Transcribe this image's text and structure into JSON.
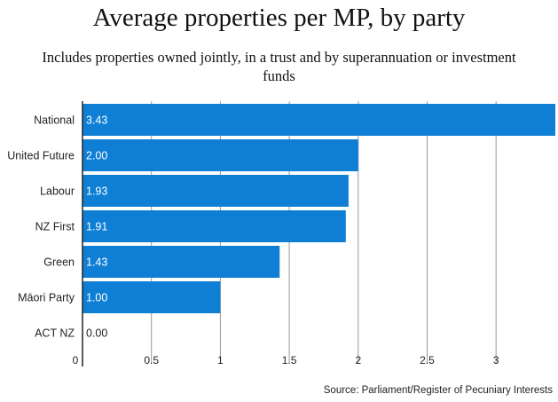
{
  "chart_data": {
    "type": "bar",
    "orientation": "horizontal",
    "title": "Average properties per MP, by party",
    "subtitle": "Includes properties owned jointly, in a trust and by superannuation or investment funds",
    "categories": [
      "National",
      "United Future",
      "Labour",
      "NZ First",
      "Green",
      "Māori Party",
      "ACT NZ"
    ],
    "values": [
      3.43,
      2.0,
      1.93,
      1.91,
      1.43,
      1.0,
      0.0
    ],
    "value_labels": [
      "3.43",
      "2.00",
      "1.93",
      "1.91",
      "1.43",
      "1.00",
      "0.00"
    ],
    "xticks": [
      0,
      0.5,
      1,
      1.5,
      2,
      2.5,
      3
    ],
    "xtick_labels": [
      "0",
      "0.5",
      "1",
      "1.5",
      "2",
      "2.5",
      "3"
    ],
    "xlim": [
      0,
      3.43
    ],
    "xlabel": "",
    "ylabel": "",
    "grid": "vertical",
    "bar_color": "#0f7fd5",
    "source": "Source: Parliament/Register of Pecuniary Interests"
  }
}
